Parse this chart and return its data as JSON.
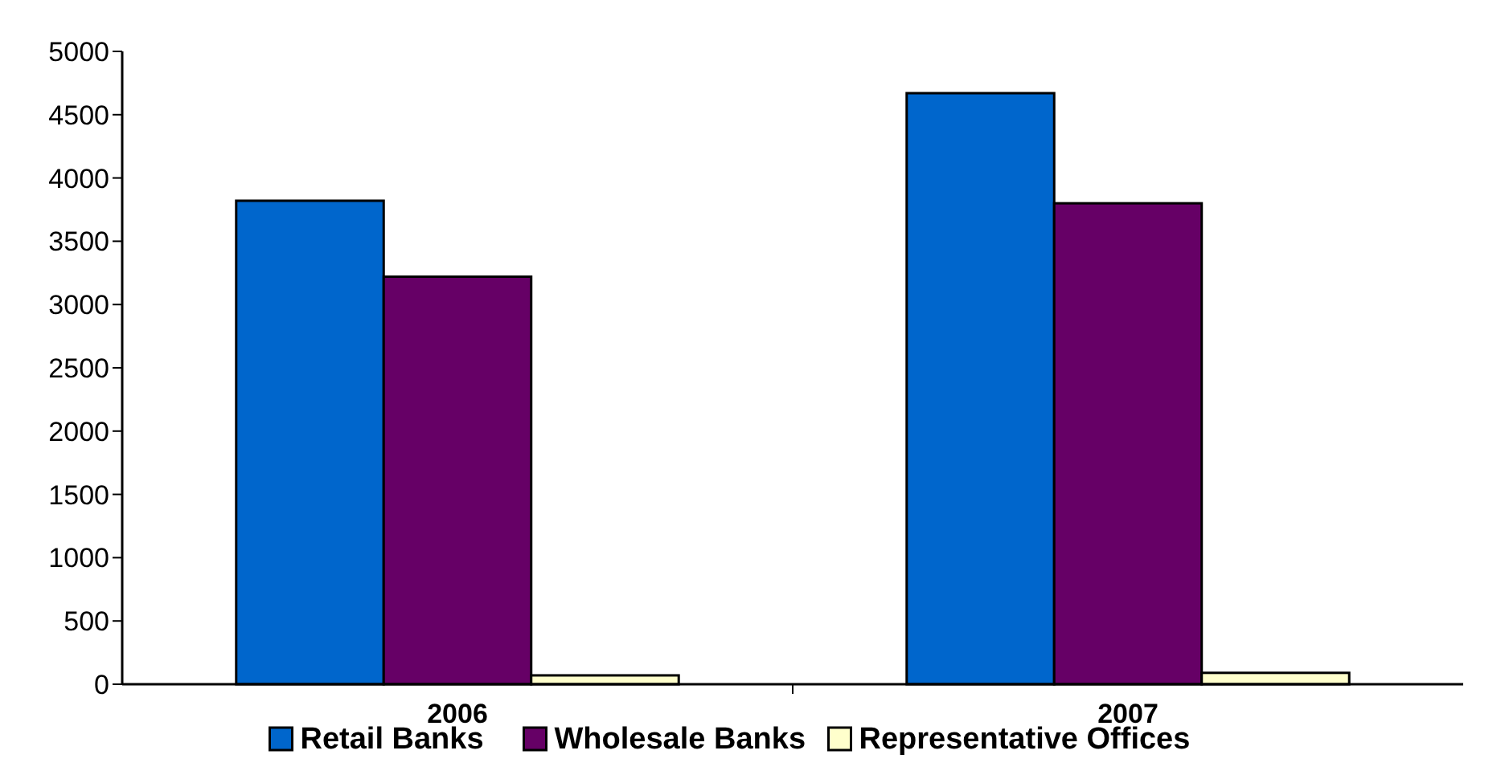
{
  "chart_data": {
    "type": "bar",
    "categories": [
      "2006",
      "2007"
    ],
    "series": [
      {
        "name": "Retail Banks",
        "color": "#0066cc",
        "values": [
          3820,
          4670
        ]
      },
      {
        "name": "Wholesale Banks",
        "color": "#660066",
        "values": [
          3220,
          3800
        ]
      },
      {
        "name": "Representative Offices",
        "color": "#ffffcc",
        "values": [
          70,
          90
        ]
      }
    ],
    "ylim": [
      0,
      5000
    ],
    "yticks": [
      0,
      500,
      1000,
      1500,
      2000,
      2500,
      3000,
      3500,
      4000,
      4500,
      5000
    ],
    "grid": false,
    "legend": "bottom"
  }
}
